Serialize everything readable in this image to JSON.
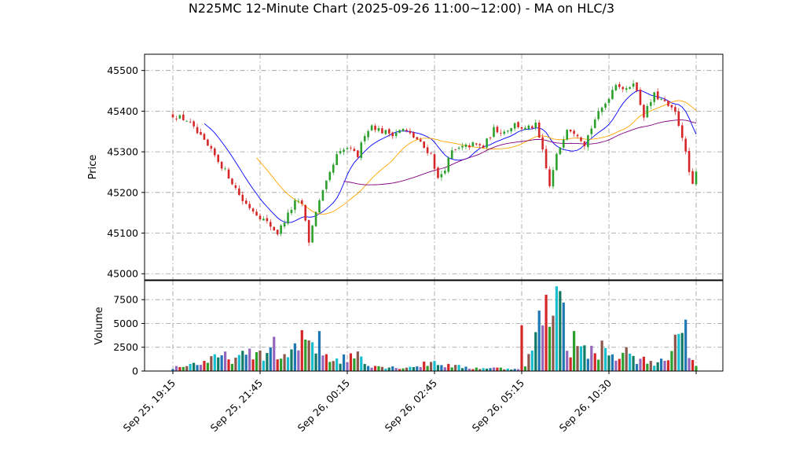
{
  "chart_data": {
    "type": "candlestick",
    "title": "N225MC 12-Minute Chart (2025-09-26 11:00~12:00) - MA on HLC/3",
    "price_panel": {
      "ylabel": "Price",
      "ylim": [
        44985,
        45540
      ],
      "yticks": [
        45000,
        45100,
        45200,
        45300,
        45400,
        45500
      ],
      "grid": true
    },
    "volume_panel": {
      "ylabel": "Volume",
      "ylim": [
        0,
        9500
      ],
      "yticks": [
        0,
        2500,
        5000,
        7500
      ],
      "grid": true
    },
    "xtick_labels": [
      "Sep 25, 19:15",
      "Sep 25, 21:45",
      "Sep 26, 00:15",
      "Sep 26, 02:45",
      "Sep 26, 05:15",
      "Sep 26, 10:30"
    ],
    "xtick_bar_index": [
      0,
      25,
      50,
      75,
      100,
      125
    ],
    "bar_count": 151,
    "colors": {
      "up": "#2ca02c",
      "down": "#d62728",
      "volume": [
        "#1f77b4",
        "#9467bd",
        "#d62728",
        "#2ca02c",
        "#8c564b",
        "#17becf",
        "#117a65"
      ],
      "ma_short": "#0000ff",
      "ma_mid": "#ffa500",
      "ma_long": "#800080"
    },
    "close_anchors": [
      [
        0,
        45390
      ],
      [
        4,
        45378
      ],
      [
        8,
        45335
      ],
      [
        12,
        45290
      ],
      [
        16,
        45240
      ],
      [
        20,
        45180
      ],
      [
        24,
        45148
      ],
      [
        28,
        45118
      ],
      [
        30,
        45100
      ],
      [
        33,
        45145
      ],
      [
        35,
        45175
      ],
      [
        37,
        45172
      ],
      [
        39,
        45080
      ],
      [
        41,
        45155
      ],
      [
        43,
        45200
      ],
      [
        45,
        45245
      ],
      [
        47,
        45290
      ],
      [
        50,
        45310
      ],
      [
        53,
        45290
      ],
      [
        55,
        45345
      ],
      [
        57,
        45365
      ],
      [
        60,
        45350
      ],
      [
        63,
        45345
      ],
      [
        66,
        45355
      ],
      [
        70,
        45330
      ],
      [
        72,
        45310
      ],
      [
        74,
        45295
      ],
      [
        76,
        45232
      ],
      [
        78,
        45260
      ],
      [
        80,
        45300
      ],
      [
        83,
        45310
      ],
      [
        86,
        45318
      ],
      [
        89,
        45312
      ],
      [
        92,
        45355
      ],
      [
        95,
        45350
      ],
      [
        98,
        45368
      ],
      [
        101,
        45355
      ],
      [
        104,
        45365
      ],
      [
        106,
        45300
      ],
      [
        108,
        45215
      ],
      [
        110,
        45290
      ],
      [
        113,
        45360
      ],
      [
        116,
        45345
      ],
      [
        118,
        45320
      ],
      [
        121,
        45380
      ],
      [
        124,
        45420
      ],
      [
        127,
        45470
      ],
      [
        130,
        45450
      ],
      [
        132,
        45475
      ],
      [
        135,
        45390
      ],
      [
        138,
        45440
      ],
      [
        141,
        45420
      ],
      [
        144,
        45395
      ],
      [
        146,
        45340
      ],
      [
        148,
        45250
      ],
      [
        149,
        45215
      ],
      [
        150,
        45248
      ]
    ],
    "volume_anchors": [
      [
        0,
        350
      ],
      [
        10,
        1000
      ],
      [
        14,
        1500
      ],
      [
        18,
        1300
      ],
      [
        22,
        1700
      ],
      [
        25,
        1900
      ],
      [
        27,
        2000
      ],
      [
        30,
        1200
      ],
      [
        33,
        1500
      ],
      [
        36,
        2500
      ],
      [
        38,
        3700
      ],
      [
        40,
        2800
      ],
      [
        43,
        2000
      ],
      [
        46,
        1200
      ],
      [
        50,
        1300
      ],
      [
        53,
        1900
      ],
      [
        56,
        700
      ],
      [
        60,
        450
      ],
      [
        65,
        350
      ],
      [
        70,
        500
      ],
      [
        75,
        1000
      ],
      [
        78,
        600
      ],
      [
        82,
        450
      ],
      [
        86,
        300
      ],
      [
        92,
        320
      ],
      [
        96,
        250
      ],
      [
        100,
        300
      ],
      [
        103,
        2000
      ],
      [
        106,
        6500
      ],
      [
        108,
        5500
      ],
      [
        110,
        3600
      ],
      [
        113,
        2500
      ],
      [
        118,
        2100
      ],
      [
        122,
        2000
      ],
      [
        126,
        1500
      ],
      [
        130,
        1400
      ],
      [
        134,
        1200
      ],
      [
        138,
        1000
      ],
      [
        142,
        900
      ],
      [
        144,
        3000
      ],
      [
        146,
        4200
      ],
      [
        148,
        1800
      ],
      [
        150,
        600
      ]
    ],
    "volume_spikes": [
      [
        100,
        4800
      ],
      [
        110,
        8900
      ],
      [
        111,
        8400
      ],
      [
        112,
        7200
      ],
      [
        115,
        4200
      ],
      [
        123,
        3200
      ],
      [
        130,
        2500
      ],
      [
        145,
        3900
      ],
      [
        147,
        5400
      ],
      [
        29,
        3600
      ],
      [
        37,
        4300
      ],
      [
        42,
        4200
      ]
    ],
    "moving_averages": [
      {
        "key": "ma_short",
        "period": 10
      },
      {
        "key": "ma_mid",
        "period": 25
      },
      {
        "key": "ma_long",
        "period": 50
      }
    ]
  }
}
